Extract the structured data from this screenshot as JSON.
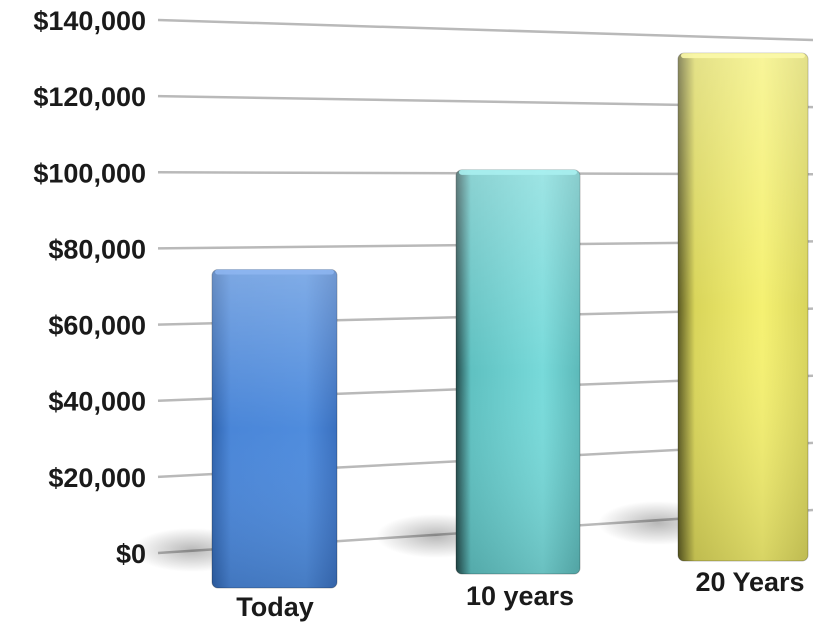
{
  "chart_data": {
    "type": "bar",
    "title": "",
    "xlabel": "",
    "ylabel": "",
    "categories": [
      "Today",
      "10 years",
      "20 Years"
    ],
    "values": [
      74000,
      101000,
      135500
    ],
    "ylim": [
      0,
      140000
    ],
    "yticks": [
      0,
      20000,
      40000,
      60000,
      80000,
      100000,
      120000,
      140000
    ],
    "ytick_labels": [
      "$0",
      "$20,000",
      "$40,000",
      "$60,000",
      "$80,000",
      "$100,000",
      "$120,000",
      "$140,000"
    ],
    "grid": true,
    "legend": "none",
    "colors": [
      "#4a86d8",
      "#74d8d8",
      "#f2ee6c"
    ]
  }
}
